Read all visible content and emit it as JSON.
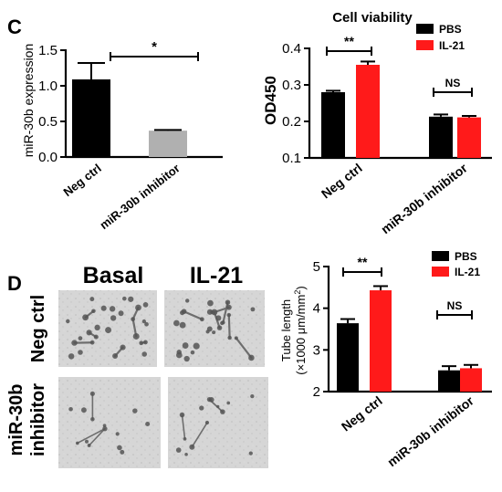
{
  "panels": {
    "c_label": "C",
    "d_label": "D"
  },
  "micrographs": {
    "col_basal": "Basal",
    "col_il21": "IL-21",
    "row_neg_ctrl": "Neg ctrl",
    "row_inhibitor": "miR-30b inhibitor",
    "row_inhibitor_line1": "miR-30b",
    "row_inhibitor_line2": "inhibitor"
  },
  "colors": {
    "pbs": "#000000",
    "il21": "#ff1a1a",
    "gray_bar": "#b0b0b0",
    "micrograph_bg": "#d4d4d4"
  },
  "chart_data": [
    {
      "id": "mir30b-expression",
      "type": "bar",
      "title": "",
      "xlabel": "",
      "ylabel": "miR-30b expression",
      "categories": [
        "Neg ctrl",
        "miR-30b inhibitor"
      ],
      "values": [
        1.09,
        0.37
      ],
      "errors": [
        0.23,
        0.01
      ],
      "bar_colors": [
        "#000000",
        "#b0b0b0"
      ],
      "ylim": [
        0,
        1.5
      ],
      "yticks": [
        "0.0",
        "0.5",
        "1.0",
        "1.5"
      ],
      "significance": [
        {
          "between": [
            0,
            1
          ],
          "label": "*"
        }
      ],
      "grid": false
    },
    {
      "id": "cell-viability",
      "type": "bar",
      "title": "Cell viability",
      "xlabel": "",
      "ylabel": "OD450",
      "categories": [
        "Neg ctrl",
        "miR-30b inhibitor"
      ],
      "series": [
        {
          "name": "PBS",
          "values": [
            0.28,
            0.213
          ],
          "errors": [
            0.004,
            0.006
          ]
        },
        {
          "name": "IL-21",
          "values": [
            0.355,
            0.211
          ],
          "errors": [
            0.009,
            0.004
          ]
        }
      ],
      "ylim": [
        0.1,
        0.4
      ],
      "yticks": [
        "0.1",
        "0.2",
        "0.3",
        "0.4"
      ],
      "significance": [
        {
          "group": 0,
          "label": "**"
        },
        {
          "group": 1,
          "label": "NS"
        }
      ],
      "legend": "top-right",
      "grid": false
    },
    {
      "id": "tube-length",
      "type": "bar",
      "title": "",
      "xlabel": "",
      "ylabel": "Tube length (×1000 μm/mm²)",
      "ylabel_line1": "Tube length",
      "ylabel_line2": "(×1000 μm/mm",
      "ylabel_sup": "2",
      "ylabel_close": ")",
      "categories": [
        "Neg ctrl",
        "miR-30b inhibitor"
      ],
      "series": [
        {
          "name": "PBS",
          "values": [
            3.64,
            2.51
          ],
          "errors": [
            0.1,
            0.1
          ]
        },
        {
          "name": "IL-21",
          "values": [
            4.43,
            2.56
          ],
          "errors": [
            0.1,
            0.08
          ]
        }
      ],
      "ylim": [
        2,
        5
      ],
      "yticks": [
        "2",
        "3",
        "4",
        "5"
      ],
      "significance": [
        {
          "group": 0,
          "label": "**"
        },
        {
          "group": 1,
          "label": "NS"
        }
      ],
      "legend": "top-right",
      "grid": false
    }
  ]
}
